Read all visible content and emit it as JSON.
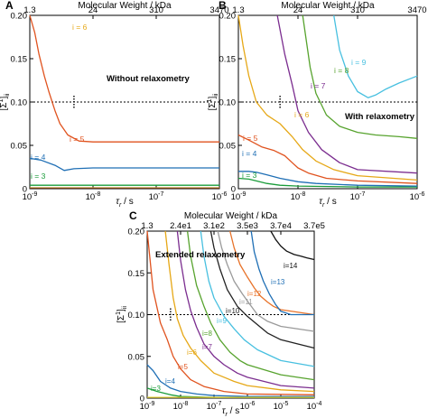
{
  "chart_data": [
    {
      "type": "line",
      "panel_label": "A",
      "annotation": "Without relaxometry",
      "xlabel": "τr / s",
      "ylabel": "[Σ1]ii",
      "top_axis_label": "Molecular Weight / kDa",
      "top_ticks": [
        "1.3",
        "24",
        "310",
        "3470"
      ],
      "xscale": "log",
      "xlim": [
        1e-09,
        1e-06
      ],
      "ylim": [
        0,
        0.2
      ],
      "x_tick_labels": [
        "10-9",
        "10-8",
        "10-7",
        "10-6"
      ],
      "y_tick_labels": [
        "0",
        "0.05",
        "0.10",
        "0.15",
        "0.20"
      ],
      "threshold": 0.1,
      "optimum_marker": {
        "x": 5e-09,
        "y": 0.1
      },
      "series": [
        {
          "name": "i = 3",
          "color": "#1a9c3a",
          "x": [
            1e-09,
            1e-08,
            1e-07,
            1e-06
          ],
          "y": [
            0.004,
            0.004,
            0.004,
            0.004
          ]
        },
        {
          "name": "i = 4",
          "color": "#1f6fb5",
          "x": [
            1e-09,
            1.5e-09,
            2.5e-09,
            3.5e-09,
            5e-09,
            1e-08,
            1e-07,
            1e-06
          ],
          "y": [
            0.035,
            0.033,
            0.027,
            0.021,
            0.023,
            0.024,
            0.024,
            0.024
          ]
        },
        {
          "name": "i = 5",
          "color": "#e0531f",
          "x": [
            1e-09,
            1.2e-09,
            1.4e-09,
            1.7e-09,
            2e-09,
            2.5e-09,
            3e-09,
            4e-09,
            6e-09,
            1e-08,
            1e-07,
            1e-06
          ],
          "y": [
            0.2,
            0.18,
            0.155,
            0.13,
            0.112,
            0.09,
            0.075,
            0.062,
            0.055,
            0.054,
            0.054,
            0.054
          ]
        },
        {
          "name": "i = 6",
          "color": "#e6a817",
          "x": [],
          "y": []
        },
        {
          "color": "#e6d33a",
          "x": [
            1e-09,
            1e-06
          ],
          "y": [
            0.001,
            0.001
          ]
        },
        {
          "color": "#7a3e1d",
          "x": [
            1e-09,
            1e-06
          ],
          "y": [
            0.0006,
            0.0006
          ]
        }
      ]
    },
    {
      "type": "line",
      "panel_label": "B",
      "annotation": "With relaxometry",
      "xlabel": "τr / s",
      "ylabel": "[Σ1]ii",
      "top_axis_label": "Molecular Weight / kDa",
      "top_ticks": [
        "1.3",
        "24",
        "310",
        "3470"
      ],
      "xscale": "log",
      "xlim": [
        1e-09,
        1e-06
      ],
      "ylim": [
        0,
        0.2
      ],
      "x_tick_labels": [
        "10-9",
        "10-8",
        "10-7",
        "10-6"
      ],
      "y_tick_labels": [
        "0",
        "0.05",
        "0.10",
        "0.15",
        "0.20"
      ],
      "threshold": 0.1,
      "optimum_marker": {
        "x": 5e-09,
        "y": 0.1
      },
      "series": [
        {
          "name": "i = 3",
          "color": "#1a9c3a",
          "x": [
            1e-09,
            1.5e-09,
            2e-09,
            3e-09,
            5e-09,
            1e-08,
            1e-07,
            1e-06
          ],
          "y": [
            0.012,
            0.011,
            0.009,
            0.006,
            0.004,
            0.003,
            0.002,
            0.002
          ]
        },
        {
          "name": "i = 4",
          "color": "#1f6fb5",
          "x": [
            1e-09,
            1.5e-09,
            2e-09,
            3e-09,
            5e-09,
            1e-08,
            2e-08,
            1e-07,
            1e-06
          ],
          "y": [
            0.02,
            0.02,
            0.019,
            0.016,
            0.012,
            0.008,
            0.006,
            0.004,
            0.003
          ]
        },
        {
          "name": "i = 5",
          "color": "#e0531f",
          "x": [
            1e-09,
            1.5e-09,
            2.5e-09,
            4e-09,
            6e-09,
            8e-09,
            1e-08,
            1.5e-08,
            3e-08,
            1e-07,
            1e-06
          ],
          "y": [
            0.062,
            0.056,
            0.048,
            0.044,
            0.038,
            0.03,
            0.024,
            0.018,
            0.012,
            0.009,
            0.006
          ]
        },
        {
          "name": "i = 6",
          "color": "#e6a817",
          "x": [
            1e-09,
            1.2e-09,
            1.5e-09,
            2e-09,
            3e-09,
            5e-09,
            8e-09,
            1.2e-08,
            2e-08,
            4e-08,
            1e-07,
            1e-06
          ],
          "y": [
            0.2,
            0.165,
            0.13,
            0.1,
            0.085,
            0.075,
            0.06,
            0.045,
            0.032,
            0.022,
            0.015,
            0.01
          ]
        },
        {
          "name": "i = 7",
          "color": "#7b2d8f",
          "x": [
            4.5e-09,
            6e-09,
            8e-09,
            1e-08,
            1.5e-08,
            2.5e-08,
            5e-08,
            1e-07,
            1e-06
          ],
          "y": [
            0.2,
            0.155,
            0.12,
            0.09,
            0.065,
            0.045,
            0.03,
            0.022,
            0.018
          ]
        },
        {
          "name": "i = 8",
          "color": "#57a32e",
          "x": [
            1.2e-08,
            1.6e-08,
            2e-08,
            3e-08,
            5e-08,
            1e-07,
            2e-07,
            5e-07,
            1e-06
          ],
          "y": [
            0.2,
            0.14,
            0.11,
            0.085,
            0.072,
            0.065,
            0.062,
            0.06,
            0.058
          ]
        },
        {
          "name": "i = 9",
          "color": "#48c0e0",
          "x": [
            4e-08,
            5e-08,
            7e-08,
            1e-07,
            1.5e-07,
            2e-07,
            3e-07,
            5e-07,
            1e-06
          ],
          "y": [
            0.2,
            0.16,
            0.13,
            0.112,
            0.105,
            0.108,
            0.115,
            0.122,
            0.13
          ]
        }
      ]
    },
    {
      "type": "line",
      "panel_label": "C",
      "annotation": "Extended relaxometry",
      "xlabel": "τr / s",
      "ylabel": "[Σ1]ii",
      "top_axis_label": "Molecular Weight / kDa",
      "top_ticks": [
        "1.3",
        "2.4e1",
        "3.1e2",
        "3.5e3",
        "3.7e4",
        "3.7e5"
      ],
      "xscale": "log",
      "xlim": [
        1e-09,
        0.0001
      ],
      "ylim": [
        0,
        0.2
      ],
      "x_tick_labels": [
        "10-9",
        "10-8",
        "10-7",
        "10-6",
        "10-5",
        "10-4"
      ],
      "y_tick_labels": [
        "0",
        "0.05",
        "0.10",
        "0.15",
        "0.20"
      ],
      "threshold": 0.1,
      "optimum_marker": {
        "x": 5e-09,
        "y": 0.1
      },
      "series": [
        {
          "name": "i=3",
          "color": "#1a9c3a",
          "x": [
            1e-09,
            2e-09,
            5e-09,
            1e-08,
            1e-07,
            1e-06,
            0.0001
          ],
          "y": [
            0.012,
            0.008,
            0.004,
            0.002,
            0.001,
            0.001,
            0.001
          ]
        },
        {
          "name": "i=4",
          "color": "#1f6fb5",
          "x": [
            1e-09,
            1.5e-09,
            2.5e-09,
            5e-09,
            1e-08,
            3e-08,
            1e-07,
            1e-06,
            0.0001
          ],
          "y": [
            0.04,
            0.033,
            0.02,
            0.012,
            0.008,
            0.005,
            0.003,
            0.002,
            0.002
          ]
        },
        {
          "name": "i=5",
          "color": "#e0531f",
          "x": [
            1e-09,
            1.5e-09,
            2.5e-09,
            4e-09,
            6e-09,
            1e-08,
            2e-08,
            5e-08,
            2e-07,
            1e-06,
            0.0001
          ],
          "y": [
            0.2,
            0.13,
            0.09,
            0.07,
            0.05,
            0.035,
            0.022,
            0.014,
            0.008,
            0.005,
            0.004
          ]
        },
        {
          "name": "i=6",
          "color": "#e6a817",
          "x": [
            3.5e-09,
            4.5e-09,
            6e-09,
            8e-09,
            1.2e-08,
            2e-08,
            4e-08,
            1e-07,
            4e-07,
            1e-06,
            1e-05,
            0.0001
          ],
          "y": [
            0.2,
            0.16,
            0.12,
            0.095,
            0.075,
            0.06,
            0.045,
            0.03,
            0.02,
            0.015,
            0.01,
            0.008
          ]
        },
        {
          "name": "i=7",
          "color": "#7b2d8f",
          "x": [
            8e-09,
            1e-08,
            1.4e-08,
            2e-08,
            3e-08,
            5e-08,
            1e-07,
            2e-07,
            5e-07,
            1e-06,
            1e-05,
            0.0001
          ],
          "y": [
            0.2,
            0.165,
            0.13,
            0.105,
            0.085,
            0.065,
            0.05,
            0.04,
            0.03,
            0.025,
            0.015,
            0.012
          ]
        },
        {
          "name": "i=8",
          "color": "#57a32e",
          "x": [
            1.6e-08,
            2e-08,
            3e-08,
            5e-08,
            8e-08,
            1.5e-07,
            3e-07,
            6e-07,
            1e-06,
            1e-05,
            0.0001
          ],
          "y": [
            0.2,
            0.17,
            0.135,
            0.11,
            0.09,
            0.07,
            0.055,
            0.045,
            0.04,
            0.028,
            0.022
          ]
        },
        {
          "name": "i=9",
          "color": "#48c0e0",
          "x": [
            4e-08,
            5e-08,
            7e-08,
            1e-07,
            2e-07,
            4e-07,
            8e-07,
            2e-06,
            1e-05,
            0.0001
          ],
          "y": [
            0.2,
            0.17,
            0.14,
            0.12,
            0.098,
            0.083,
            0.07,
            0.058,
            0.045,
            0.038
          ]
        },
        {
          "name": "i=10",
          "color": "#222222",
          "x": [
            8e-08,
            1e-07,
            1.5e-07,
            2.5e-07,
            5e-07,
            1e-06,
            2e-06,
            4e-06,
            1e-05,
            0.0001
          ],
          "y": [
            0.2,
            0.18,
            0.155,
            0.13,
            0.11,
            0.098,
            0.088,
            0.078,
            0.07,
            0.06
          ]
        },
        {
          "name": "i=11",
          "color": "#9a9a9a",
          "x": [
            1.3e-07,
            1.7e-07,
            2.5e-07,
            4e-07,
            7e-07,
            1.2e-06,
            2e-06,
            4e-06,
            1e-05,
            0.0001
          ],
          "y": [
            0.2,
            0.18,
            0.16,
            0.14,
            0.125,
            0.112,
            0.1,
            0.092,
            0.086,
            0.08
          ]
        },
        {
          "name": "i=12",
          "color": "#e8732a",
          "x": [
            3e-07,
            4e-07,
            6e-07,
            1e-06,
            1.6e-06,
            2.5e-06,
            4e-06,
            6e-06,
            1e-05,
            0.0001
          ],
          "y": [
            0.2,
            0.18,
            0.16,
            0.145,
            0.132,
            0.122,
            0.115,
            0.11,
            0.106,
            0.1
          ]
        },
        {
          "name": "i=13",
          "color": "#1f6fb5",
          "x": [
            1.3e-06,
            1.6e-06,
            2.2e-06,
            3e-06,
            4.5e-06,
            7e-06,
            1e-05,
            2e-05,
            5e-05,
            0.0001
          ],
          "y": [
            0.2,
            0.175,
            0.155,
            0.14,
            0.125,
            0.112,
            0.104,
            0.1,
            0.1,
            0.1
          ]
        },
        {
          "name": "i=14",
          "color": "#111111",
          "x": [
            5e-06,
            7e-06,
            1e-05,
            1.5e-05,
            2.5e-05,
            4e-05,
            6e-05,
            0.0001
          ],
          "y": [
            0.2,
            0.19,
            0.182,
            0.176,
            0.172,
            0.17,
            0.168,
            0.166
          ]
        },
        {
          "color": "#e6d33a",
          "x": [
            1e-09,
            0.0001
          ],
          "y": [
            0.001,
            0.001
          ]
        }
      ]
    }
  ]
}
